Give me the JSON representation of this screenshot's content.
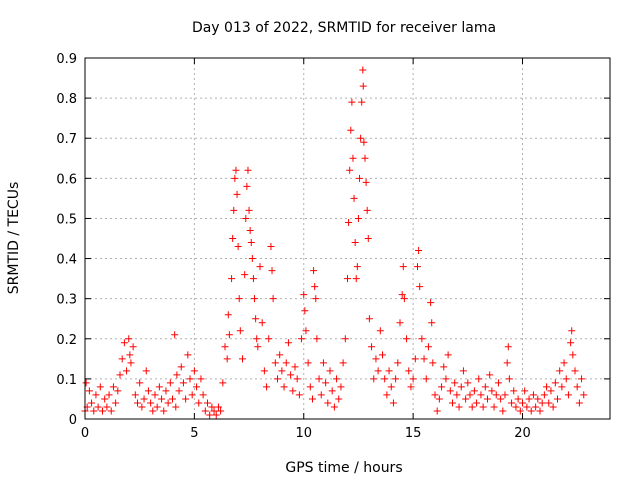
{
  "chart_data": {
    "type": "scatter",
    "title": "Day 013 of 2022, SRMTID for receiver lama",
    "xlabel": "GPS time / hours",
    "ylabel": "SRMTID / TECUs",
    "xlim": [
      0,
      24
    ],
    "ylim": [
      0,
      0.9
    ],
    "x_ticks": [
      0,
      5,
      10,
      15,
      20
    ],
    "x_tick_labels": [
      "0",
      "5",
      "10",
      "15",
      "20"
    ],
    "y_ticks": [
      0,
      0.1,
      0.2,
      0.3,
      0.4,
      0.5,
      0.6,
      0.7,
      0.8,
      0.9
    ],
    "y_tick_labels": [
      "0",
      "0.1",
      "0.2",
      "0.3",
      "0.4",
      "0.5",
      "0.6",
      "0.7",
      "0.8",
      "0.9"
    ],
    "grid": true,
    "legend": "none",
    "marker": "+",
    "series": [
      {
        "name": "SRMTID",
        "color": "#ff0000",
        "points": [
          [
            0.0,
            0.02
          ],
          [
            0.05,
            0.09
          ],
          [
            0.1,
            0.03
          ],
          [
            0.2,
            0.07
          ],
          [
            0.3,
            0.04
          ],
          [
            0.4,
            0.02
          ],
          [
            0.5,
            0.06
          ],
          [
            0.6,
            0.03
          ],
          [
            0.7,
            0.08
          ],
          [
            0.8,
            0.02
          ],
          [
            0.9,
            0.05
          ],
          [
            1.0,
            0.03
          ],
          [
            1.1,
            0.06
          ],
          [
            1.2,
            0.02
          ],
          [
            1.3,
            0.08
          ],
          [
            1.4,
            0.04
          ],
          [
            1.5,
            0.07
          ],
          [
            1.6,
            0.11
          ],
          [
            1.7,
            0.15
          ],
          [
            1.8,
            0.19
          ],
          [
            1.9,
            0.12
          ],
          [
            2.0,
            0.2
          ],
          [
            2.05,
            0.16
          ],
          [
            2.1,
            0.14
          ],
          [
            2.2,
            0.18
          ],
          [
            2.3,
            0.06
          ],
          [
            2.4,
            0.04
          ],
          [
            2.5,
            0.09
          ],
          [
            2.6,
            0.03
          ],
          [
            2.7,
            0.05
          ],
          [
            2.8,
            0.12
          ],
          [
            2.9,
            0.07
          ],
          [
            3.0,
            0.04
          ],
          [
            3.1,
            0.02
          ],
          [
            3.2,
            0.06
          ],
          [
            3.3,
            0.03
          ],
          [
            3.4,
            0.08
          ],
          [
            3.5,
            0.05
          ],
          [
            3.6,
            0.02
          ],
          [
            3.7,
            0.07
          ],
          [
            3.8,
            0.04
          ],
          [
            3.9,
            0.09
          ],
          [
            4.0,
            0.05
          ],
          [
            4.1,
            0.21
          ],
          [
            4.15,
            0.03
          ],
          [
            4.2,
            0.11
          ],
          [
            4.3,
            0.07
          ],
          [
            4.4,
            0.13
          ],
          [
            4.5,
            0.09
          ],
          [
            4.6,
            0.05
          ],
          [
            4.7,
            0.16
          ],
          [
            4.8,
            0.1
          ],
          [
            4.9,
            0.06
          ],
          [
            5.0,
            0.12
          ],
          [
            5.1,
            0.08
          ],
          [
            5.2,
            0.04
          ],
          [
            5.3,
            0.1
          ],
          [
            5.4,
            0.06
          ],
          [
            5.5,
            0.02
          ],
          [
            5.6,
            0.04
          ],
          [
            5.7,
            0.01
          ],
          [
            5.8,
            0.03
          ],
          [
            5.9,
            0.02
          ],
          [
            6.0,
            0.01
          ],
          [
            6.1,
            0.03
          ],
          [
            6.2,
            0.02
          ],
          [
            6.3,
            0.09
          ],
          [
            6.4,
            0.18
          ],
          [
            6.5,
            0.15
          ],
          [
            6.55,
            0.26
          ],
          [
            6.6,
            0.21
          ],
          [
            6.7,
            0.35
          ],
          [
            6.75,
            0.45
          ],
          [
            6.8,
            0.52
          ],
          [
            6.85,
            0.6
          ],
          [
            6.9,
            0.62
          ],
          [
            6.95,
            0.56
          ],
          [
            7.0,
            0.43
          ],
          [
            7.05,
            0.3
          ],
          [
            7.1,
            0.22
          ],
          [
            7.2,
            0.15
          ],
          [
            7.3,
            0.36
          ],
          [
            7.35,
            0.5
          ],
          [
            7.4,
            0.58
          ],
          [
            7.45,
            0.62
          ],
          [
            7.5,
            0.52
          ],
          [
            7.55,
            0.47
          ],
          [
            7.6,
            0.44
          ],
          [
            7.65,
            0.4
          ],
          [
            7.7,
            0.35
          ],
          [
            7.75,
            0.3
          ],
          [
            7.8,
            0.25
          ],
          [
            7.85,
            0.2
          ],
          [
            7.9,
            0.18
          ],
          [
            8.0,
            0.38
          ],
          [
            8.1,
            0.24
          ],
          [
            8.2,
            0.12
          ],
          [
            8.3,
            0.08
          ],
          [
            8.4,
            0.2
          ],
          [
            8.5,
            0.43
          ],
          [
            8.55,
            0.37
          ],
          [
            8.6,
            0.3
          ],
          [
            8.7,
            0.14
          ],
          [
            8.8,
            0.1
          ],
          [
            8.9,
            0.16
          ],
          [
            9.0,
            0.12
          ],
          [
            9.1,
            0.08
          ],
          [
            9.2,
            0.14
          ],
          [
            9.3,
            0.19
          ],
          [
            9.4,
            0.11
          ],
          [
            9.5,
            0.07
          ],
          [
            9.6,
            0.13
          ],
          [
            9.7,
            0.1
          ],
          [
            9.8,
            0.06
          ],
          [
            9.9,
            0.2
          ],
          [
            10.0,
            0.31
          ],
          [
            10.05,
            0.27
          ],
          [
            10.1,
            0.22
          ],
          [
            10.2,
            0.14
          ],
          [
            10.3,
            0.08
          ],
          [
            10.4,
            0.05
          ],
          [
            10.45,
            0.37
          ],
          [
            10.5,
            0.33
          ],
          [
            10.55,
            0.3
          ],
          [
            10.6,
            0.2
          ],
          [
            10.7,
            0.1
          ],
          [
            10.8,
            0.06
          ],
          [
            10.9,
            0.14
          ],
          [
            11.0,
            0.09
          ],
          [
            11.1,
            0.04
          ],
          [
            11.2,
            0.12
          ],
          [
            11.3,
            0.07
          ],
          [
            11.4,
            0.03
          ],
          [
            11.5,
            0.1
          ],
          [
            11.6,
            0.05
          ],
          [
            11.7,
            0.08
          ],
          [
            11.8,
            0.14
          ],
          [
            11.9,
            0.2
          ],
          [
            12.0,
            0.35
          ],
          [
            12.05,
            0.49
          ],
          [
            12.1,
            0.62
          ],
          [
            12.15,
            0.72
          ],
          [
            12.2,
            0.79
          ],
          [
            12.25,
            0.65
          ],
          [
            12.3,
            0.55
          ],
          [
            12.35,
            0.44
          ],
          [
            12.4,
            0.35
          ],
          [
            12.45,
            0.38
          ],
          [
            12.5,
            0.5
          ],
          [
            12.55,
            0.6
          ],
          [
            12.6,
            0.7
          ],
          [
            12.65,
            0.79
          ],
          [
            12.7,
            0.87
          ],
          [
            12.72,
            0.83
          ],
          [
            12.75,
            0.69
          ],
          [
            12.8,
            0.65
          ],
          [
            12.85,
            0.59
          ],
          [
            12.9,
            0.52
          ],
          [
            12.95,
            0.45
          ],
          [
            13.0,
            0.25
          ],
          [
            13.1,
            0.18
          ],
          [
            13.2,
            0.1
          ],
          [
            13.3,
            0.15
          ],
          [
            13.4,
            0.12
          ],
          [
            13.5,
            0.22
          ],
          [
            13.6,
            0.16
          ],
          [
            13.7,
            0.1
          ],
          [
            13.8,
            0.06
          ],
          [
            13.9,
            0.12
          ],
          [
            14.0,
            0.08
          ],
          [
            14.1,
            0.04
          ],
          [
            14.2,
            0.1
          ],
          [
            14.3,
            0.14
          ],
          [
            14.4,
            0.24
          ],
          [
            14.5,
            0.31
          ],
          [
            14.55,
            0.38
          ],
          [
            14.6,
            0.3
          ],
          [
            14.7,
            0.2
          ],
          [
            14.8,
            0.12
          ],
          [
            14.9,
            0.08
          ],
          [
            15.0,
            0.1
          ],
          [
            15.1,
            0.15
          ],
          [
            15.2,
            0.38
          ],
          [
            15.25,
            0.42
          ],
          [
            15.3,
            0.33
          ],
          [
            15.4,
            0.2
          ],
          [
            15.5,
            0.15
          ],
          [
            15.6,
            0.1
          ],
          [
            15.7,
            0.18
          ],
          [
            15.8,
            0.29
          ],
          [
            15.85,
            0.24
          ],
          [
            15.9,
            0.14
          ],
          [
            16.0,
            0.06
          ],
          [
            16.1,
            0.02
          ],
          [
            16.2,
            0.05
          ],
          [
            16.3,
            0.08
          ],
          [
            16.4,
            0.13
          ],
          [
            16.5,
            0.1
          ],
          [
            16.6,
            0.16
          ],
          [
            16.7,
            0.07
          ],
          [
            16.8,
            0.04
          ],
          [
            16.9,
            0.09
          ],
          [
            17.0,
            0.06
          ],
          [
            17.1,
            0.03
          ],
          [
            17.2,
            0.08
          ],
          [
            17.3,
            0.12
          ],
          [
            17.4,
            0.05
          ],
          [
            17.5,
            0.09
          ],
          [
            17.6,
            0.06
          ],
          [
            17.7,
            0.03
          ],
          [
            17.8,
            0.07
          ],
          [
            17.9,
            0.04
          ],
          [
            18.0,
            0.1
          ],
          [
            18.1,
            0.06
          ],
          [
            18.2,
            0.03
          ],
          [
            18.3,
            0.08
          ],
          [
            18.4,
            0.05
          ],
          [
            18.5,
            0.11
          ],
          [
            18.6,
            0.07
          ],
          [
            18.7,
            0.03
          ],
          [
            18.8,
            0.06
          ],
          [
            18.9,
            0.09
          ],
          [
            19.0,
            0.05
          ],
          [
            19.1,
            0.02
          ],
          [
            19.2,
            0.06
          ],
          [
            19.3,
            0.14
          ],
          [
            19.35,
            0.18
          ],
          [
            19.4,
            0.1
          ],
          [
            19.5,
            0.04
          ],
          [
            19.6,
            0.07
          ],
          [
            19.7,
            0.03
          ],
          [
            19.8,
            0.05
          ],
          [
            19.9,
            0.02
          ],
          [
            20.0,
            0.04
          ],
          [
            20.1,
            0.07
          ],
          [
            20.2,
            0.03
          ],
          [
            20.3,
            0.05
          ],
          [
            20.4,
            0.02
          ],
          [
            20.5,
            0.06
          ],
          [
            20.6,
            0.03
          ],
          [
            20.7,
            0.05
          ],
          [
            20.8,
            0.02
          ],
          [
            20.9,
            0.04
          ],
          [
            21.0,
            0.06
          ],
          [
            21.1,
            0.08
          ],
          [
            21.2,
            0.04
          ],
          [
            21.3,
            0.07
          ],
          [
            21.4,
            0.03
          ],
          [
            21.5,
            0.09
          ],
          [
            21.6,
            0.05
          ],
          [
            21.7,
            0.12
          ],
          [
            21.8,
            0.08
          ],
          [
            21.9,
            0.14
          ],
          [
            22.0,
            0.1
          ],
          [
            22.1,
            0.06
          ],
          [
            22.2,
            0.19
          ],
          [
            22.25,
            0.22
          ],
          [
            22.3,
            0.16
          ],
          [
            22.4,
            0.12
          ],
          [
            22.5,
            0.08
          ],
          [
            22.6,
            0.04
          ],
          [
            22.7,
            0.1
          ],
          [
            22.8,
            0.06
          ]
        ]
      }
    ]
  }
}
